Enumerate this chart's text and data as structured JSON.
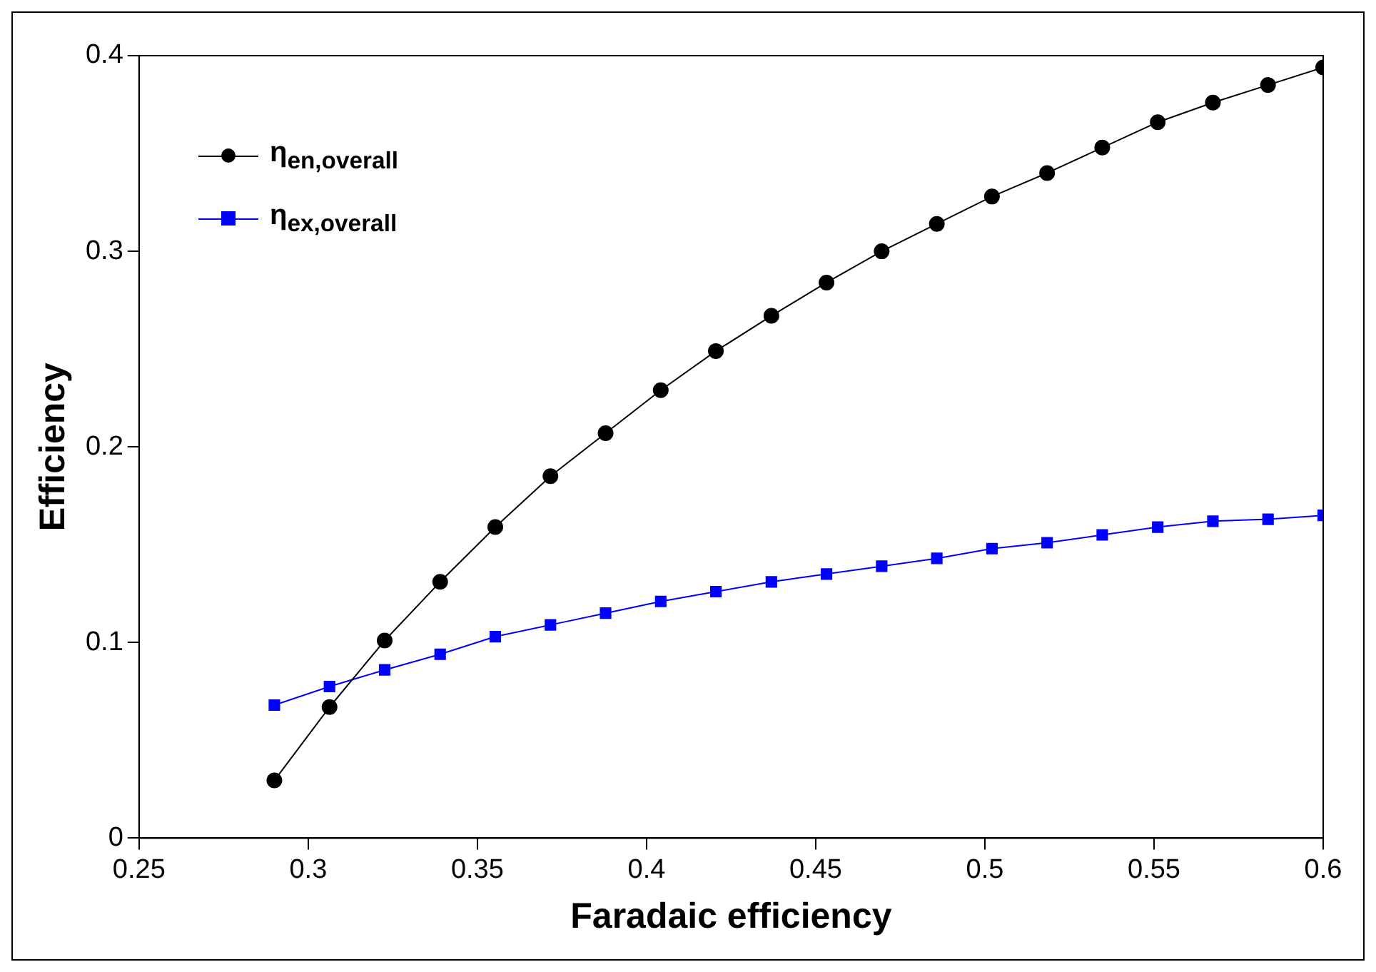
{
  "chart_data": {
    "type": "line",
    "xlabel": "Faradaic efficiency",
    "ylabel": "Efficiency",
    "x": [
      0.29,
      0.3063,
      0.3226,
      0.339,
      0.3553,
      0.3716,
      0.3879,
      0.4042,
      0.4205,
      0.4369,
      0.4532,
      0.4695,
      0.4858,
      0.5021,
      0.5184,
      0.5347,
      0.5511,
      0.5674,
      0.5837,
      0.6
    ],
    "series": [
      {
        "name": "η$_{en,overall}$",
        "color": "#000000",
        "marker": "circle",
        "values": [
          0.0295,
          0.067,
          0.101,
          0.131,
          0.159,
          0.185,
          0.207,
          0.229,
          0.249,
          0.267,
          0.284,
          0.3,
          0.314,
          0.328,
          0.34,
          0.353,
          0.366,
          0.376,
          0.385,
          0.394
        ]
      },
      {
        "name": "η$_{ex,overall}$",
        "color": "#0000ff",
        "marker": "square",
        "values": [
          0.068,
          0.0775,
          0.086,
          0.094,
          0.103,
          0.109,
          0.115,
          0.121,
          0.126,
          0.131,
          0.135,
          0.139,
          0.143,
          0.148,
          0.151,
          0.155,
          0.159,
          0.162,
          0.163,
          0.165
        ]
      }
    ],
    "xlim": [
      0.25,
      0.6
    ],
    "xticks": [
      0.25,
      0.3,
      0.35,
      0.4,
      0.45,
      0.5,
      0.55,
      0.6
    ],
    "ylim": [
      0,
      0.4
    ],
    "yticks": [
      0,
      0.1,
      0.2,
      0.3,
      0.4
    ],
    "grid": false,
    "legend": "top left"
  }
}
